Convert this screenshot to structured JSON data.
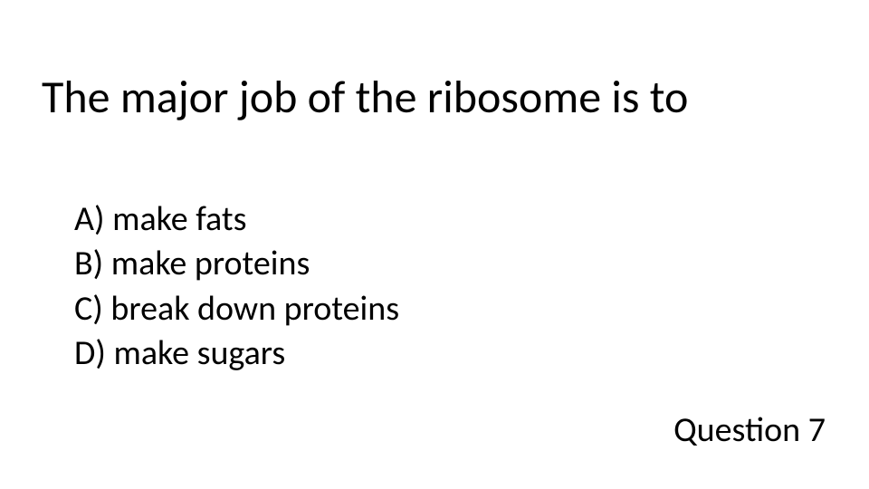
{
  "question": {
    "title": "The major job of the ribosome is to",
    "options": [
      "A) make fats",
      "B) make proteins",
      "C) break down proteins",
      "D) make sugars"
    ],
    "number_label": "Question 7"
  },
  "styling": {
    "background_color": "#ffffff",
    "text_color": "#000000",
    "title_fontsize": 50,
    "title_font_weight": 300,
    "option_fontsize": 38,
    "option_font_weight": 400,
    "number_fontsize": 38,
    "font_family": "Calibri"
  }
}
